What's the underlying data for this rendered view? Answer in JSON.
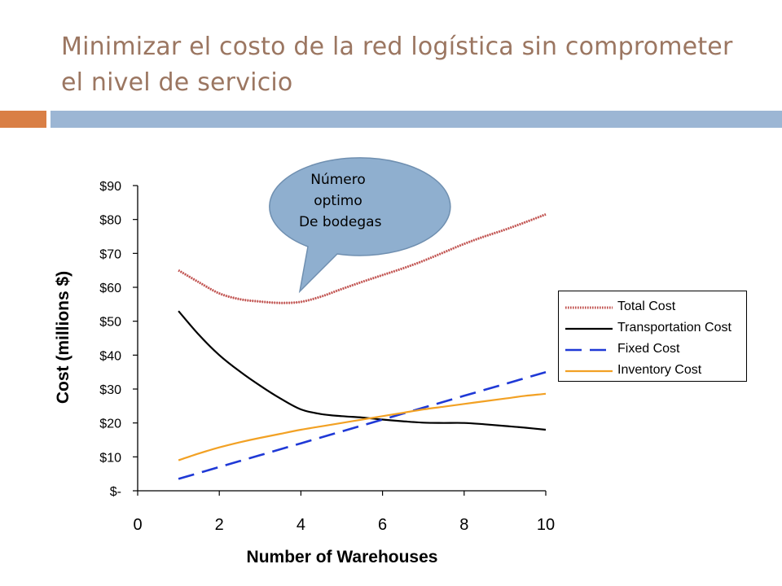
{
  "slide": {
    "title": "Minimizar el costo de la red logística sin comprometer el nivel de servicio"
  },
  "colors": {
    "title": "#9b7661",
    "accent_left": "#d97f45",
    "accent_right": "#9cb6d4",
    "callout_fill": "#8fafcf"
  },
  "callout": {
    "lines": [
      "Número",
      "optimo",
      " De bodegas"
    ]
  },
  "chart_data": {
    "type": "line",
    "title": "",
    "xlabel": "Number of Warehouses",
    "ylabel": "Cost (millions $)",
    "xlim": [
      0,
      10
    ],
    "ylim": [
      0,
      90
    ],
    "x_ticks": [
      0,
      2,
      4,
      6,
      8,
      10
    ],
    "x_tick_labels": [
      "0",
      "2",
      "4",
      "6",
      "8",
      "10"
    ],
    "y_ticks": [
      0,
      10,
      20,
      30,
      40,
      50,
      60,
      70,
      80,
      90
    ],
    "y_tick_labels": [
      "$-",
      "$10",
      "$20",
      "$30",
      "$40",
      "$50",
      "$60",
      "$70",
      "$80",
      "$90"
    ],
    "grid": false,
    "legend_position": "right",
    "series": [
      {
        "name": "Total Cost",
        "color": "#c0504d",
        "style": "dotted",
        "x": [
          1,
          1.5,
          2,
          2.5,
          3,
          3.5,
          4,
          4.5,
          5,
          5.5,
          6,
          6.5,
          7,
          7.5,
          8,
          8.5,
          9,
          9.5,
          10
        ],
        "y": [
          65,
          61.5,
          58.2,
          56.5,
          55.8,
          55.4,
          55.7,
          57.3,
          59.5,
          61.6,
          63.6,
          65.6,
          67.8,
          70.3,
          72.8,
          75,
          77,
          79.2,
          81.5
        ]
      },
      {
        "name": "Transportation Cost",
        "color": "#000000",
        "style": "solid",
        "x": [
          1,
          1.5,
          2,
          2.5,
          3,
          3.5,
          4,
          4.5,
          5,
          5.5,
          6,
          6.5,
          7,
          7.5,
          8,
          8.5,
          9,
          9.5,
          10
        ],
        "y": [
          53,
          46,
          40,
          35.2,
          31,
          27.2,
          24,
          22.6,
          22,
          21.6,
          21,
          20.5,
          20.1,
          20,
          20,
          19.6,
          19.1,
          18.6,
          18
        ]
      },
      {
        "name": "Fixed Cost",
        "color": "#1f39d6",
        "style": "dashed",
        "x": [
          1,
          2,
          3,
          4,
          5,
          6,
          7,
          8,
          9,
          10
        ],
        "y": [
          3.5,
          7,
          10.5,
          14,
          17.5,
          21,
          24.5,
          28,
          31.5,
          35
        ]
      },
      {
        "name": "Inventory Cost",
        "color": "#f2a124",
        "style": "solid",
        "x": [
          1,
          1.5,
          2,
          2.5,
          3,
          3.5,
          4,
          4.5,
          5,
          5.5,
          6,
          6.5,
          7,
          7.5,
          8,
          8.5,
          9,
          9.5,
          10
        ],
        "y": [
          9,
          11,
          12.8,
          14.3,
          15.6,
          16.8,
          18,
          19,
          20,
          21,
          22,
          23,
          24,
          24.8,
          25.6,
          26.4,
          27.2,
          28,
          28.6
        ]
      }
    ]
  }
}
